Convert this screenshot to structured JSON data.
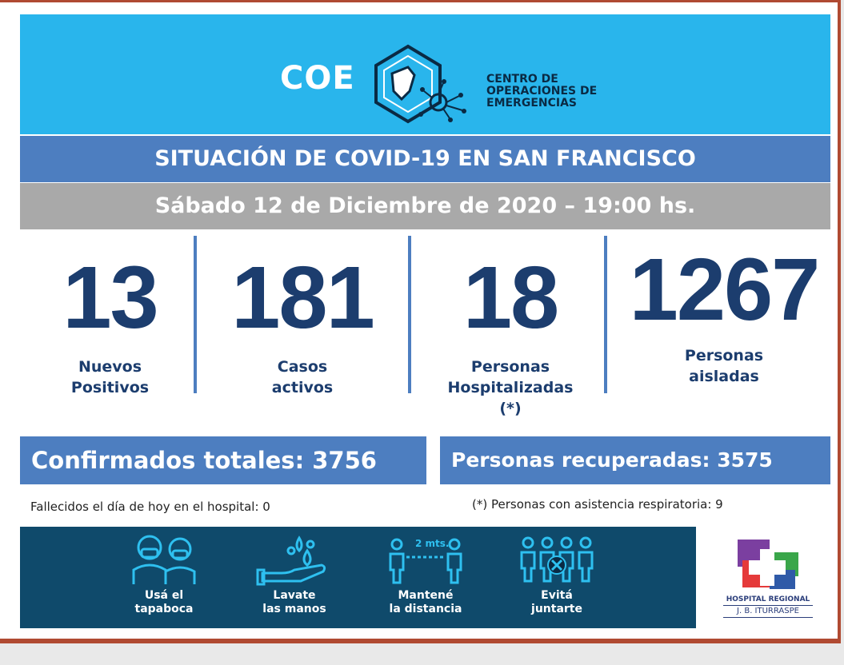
{
  "header": {
    "logo_word": "COE",
    "logo_subtitle": [
      "CENTRO DE",
      "OPERACIONES DE",
      "EMERGENCIAS"
    ],
    "title": "SITUACIÓN DE COVID-19 EN SAN FRANCISCO",
    "date": "Sábado 12 de Diciembre de 2020 – 19:00 hs."
  },
  "stats": [
    {
      "value": "13",
      "label": [
        "Nuevos",
        "Positivos"
      ]
    },
    {
      "value": "181",
      "label": [
        "Casos",
        "activos"
      ]
    },
    {
      "value": "18",
      "label": [
        "Personas",
        "Hospitalizadas",
        "(*)"
      ]
    },
    {
      "value": "1267",
      "label": [
        "Personas",
        "aisladas"
      ]
    }
  ],
  "totals": {
    "confirmed": "Confirmados totales: 3756",
    "recovered": "Personas recuperadas: 3575"
  },
  "notes": {
    "deaths": "Fallecidos el día de hoy en el hospital: 0",
    "respiratory": "(*) Personas con asistencia respiratoria: 9"
  },
  "tips": [
    {
      "icon": "mask-people-icon",
      "lines": [
        "Usá el",
        "tapaboca"
      ]
    },
    {
      "icon": "handwash-icon",
      "lines": [
        "Lavate",
        "las manos"
      ]
    },
    {
      "icon": "distance-icon",
      "lines": [
        "Mantené",
        "la distancia"
      ],
      "badge": "2 mts."
    },
    {
      "icon": "no-gathering-icon",
      "lines": [
        "Evitá",
        "juntarte"
      ]
    }
  ],
  "hospital": {
    "line1": "HOSPITAL REGIONAL",
    "line2": "J. B. ITURRASPE"
  },
  "colors": {
    "banner": "#29b5ec",
    "title_bar": "#4d7ec0",
    "date_bar": "#a9a9a9",
    "stat_text": "#1c3d6e",
    "bottom_band": "#0f4a6b",
    "frame": "#b04a32"
  }
}
